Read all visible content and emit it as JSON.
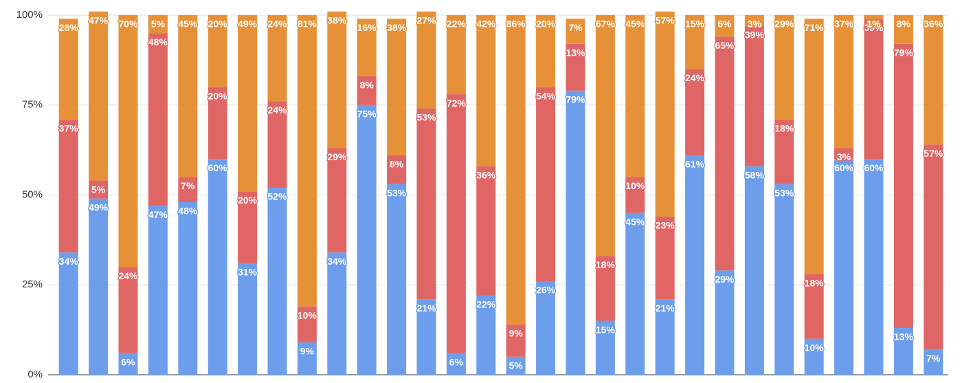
{
  "chart_data": {
    "type": "stacked_bar",
    "categories": [
      null,
      null,
      null,
      null,
      null,
      null,
      null,
      null,
      null,
      null,
      null,
      null,
      null,
      null,
      null,
      null,
      null,
      null,
      null,
      null,
      null,
      null,
      null,
      null,
      null,
      null,
      null,
      null,
      null,
      null
    ],
    "series": [
      {
        "color": "#6d9eeb",
        "values": [
          34,
          49,
          6,
          47,
          48,
          60,
          31,
          52,
          9,
          34,
          75,
          53,
          21,
          6,
          22,
          5,
          26,
          79,
          15,
          45,
          21,
          61,
          29,
          58,
          53,
          10,
          60,
          60,
          13,
          7
        ],
        "value_labels": [
          "34%",
          "49%",
          "6%",
          "47%",
          "48%",
          "60%",
          "31%",
          "52%",
          "9%",
          "34%",
          "75%",
          "53%",
          "21%",
          "6%",
          "22%",
          "5%",
          "26%",
          "79%",
          "15%",
          "45%",
          "21%",
          "61%",
          "29%",
          "58%",
          "53%",
          "10%",
          "60%",
          "60%",
          "13%",
          "7%"
        ]
      },
      {
        "color": "#e06666",
        "values": [
          37,
          5,
          24,
          48,
          7,
          20,
          20,
          24,
          10,
          29,
          8,
          8,
          53,
          72,
          36,
          9,
          54,
          13,
          18,
          10,
          23,
          24,
          65,
          39,
          18,
          18,
          3,
          39,
          79,
          57
        ],
        "value_labels": [
          "37%",
          "5%",
          "24%",
          "48%",
          "7%",
          "20%",
          "20%",
          "24%",
          "10%",
          "29%",
          "8%",
          "8%",
          "53%",
          "72%",
          "36%",
          "9%",
          "54%",
          "13%",
          "18%",
          "10%",
          "23%",
          "24%",
          "65%",
          "39%",
          "18%",
          "18%",
          "3%",
          "39%",
          "79%",
          "57%"
        ]
      },
      {
        "color": "#e69138",
        "values": [
          28,
          47,
          70,
          5,
          45,
          20,
          49,
          24,
          81,
          38,
          16,
          38,
          27,
          22,
          42,
          86,
          20,
          7,
          67,
          45,
          57,
          15,
          6,
          3,
          29,
          71,
          37,
          1,
          8,
          36
        ],
        "value_labels": [
          "28%",
          "47%",
          "70%",
          "5%",
          "45%",
          "20%",
          "49%",
          "24%",
          "81%",
          "38%",
          "16%",
          "38%",
          "27%",
          "22%",
          "42%",
          "86%",
          "20%",
          "7%",
          "67%",
          "45%",
          "57%",
          "15%",
          "6%",
          "3%",
          "29%",
          "71%",
          "37%",
          "1%",
          "8%",
          "36%"
        ]
      }
    ],
    "ylim": [
      0,
      100
    ],
    "yticks": [
      {
        "value": 0,
        "label": "0%"
      },
      {
        "value": 25,
        "label": "25%"
      },
      {
        "value": 50,
        "label": "50%"
      },
      {
        "value": 75,
        "label": "75%"
      },
      {
        "value": 100,
        "label": "100%"
      }
    ],
    "grid": true
  }
}
